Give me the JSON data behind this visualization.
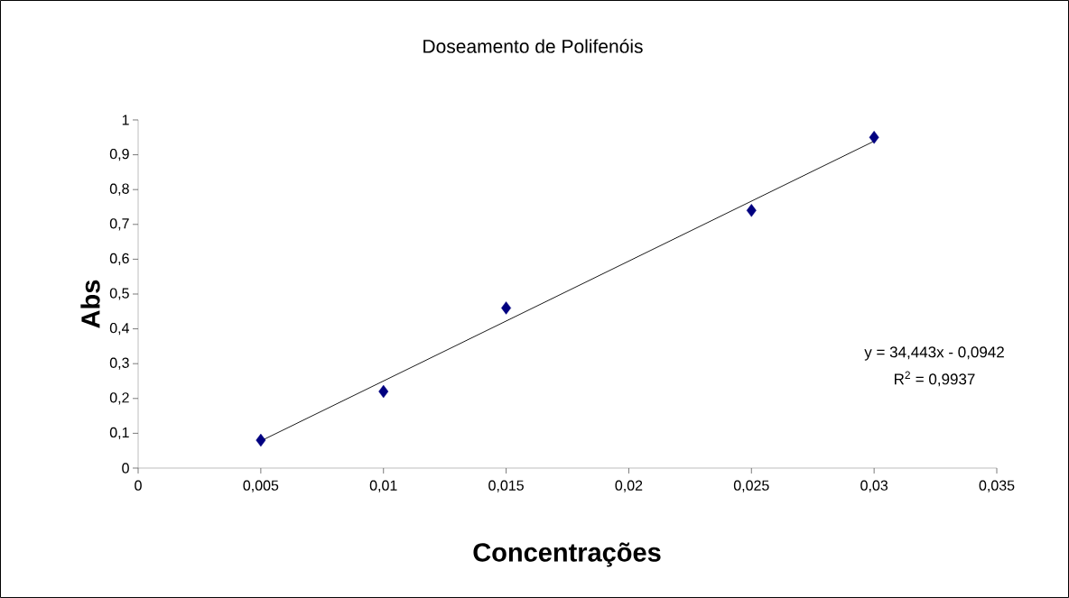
{
  "chart_data": {
    "type": "scatter",
    "title": "Doseamento de Polifenóis",
    "xlabel": "Concentrações",
    "ylabel": "Abs",
    "annotations": [
      "y = 34,443x - 0,0942",
      "R$^{2}$ = 0,9937"
    ],
    "xlim": [
      0,
      0.035
    ],
    "ylim": [
      0,
      1
    ],
    "xticks": [
      0,
      {
        "value": 0.005,
        "label": "0,005"
      },
      {
        "value": 0.01,
        "label": "0,01"
      },
      {
        "value": 0.015,
        "label": "0,015"
      },
      {
        "value": 0.02,
        "label": "0,02"
      },
      {
        "value": 0.025,
        "label": "0,025"
      },
      {
        "value": 0.03,
        "label": "0,03"
      },
      {
        "value": 0.035,
        "label": "0,035"
      }
    ],
    "yticks": [
      0,
      {
        "value": 0.1,
        "label": "0,1"
      },
      {
        "value": 0.2,
        "label": "0,2"
      },
      {
        "value": 0.3,
        "label": "0,3"
      },
      {
        "value": 0.4,
        "label": "0,4"
      },
      {
        "value": 0.5,
        "label": "0,5"
      },
      {
        "value": 0.6,
        "label": "0,6"
      },
      {
        "value": 0.7,
        "label": "0,7"
      },
      {
        "value": 0.8,
        "label": "0,8"
      },
      {
        "value": 0.9,
        "label": "0,9"
      },
      1
    ],
    "grid": false,
    "legend": false,
    "series": [
      {
        "color": "#000080",
        "marker": "diamond",
        "x": [
          0.005,
          0.01,
          0.015,
          0.025,
          0.03
        ],
        "values": [
          0.08,
          0.22,
          0.46,
          0.74,
          0.95
        ]
      },
      {
        "type": "line",
        "color": "#000000",
        "marker": "none",
        "line_style": "solid",
        "x": [
          0.005,
          0.03
        ],
        "values": [
          0.078,
          0.939
        ]
      }
    ]
  }
}
